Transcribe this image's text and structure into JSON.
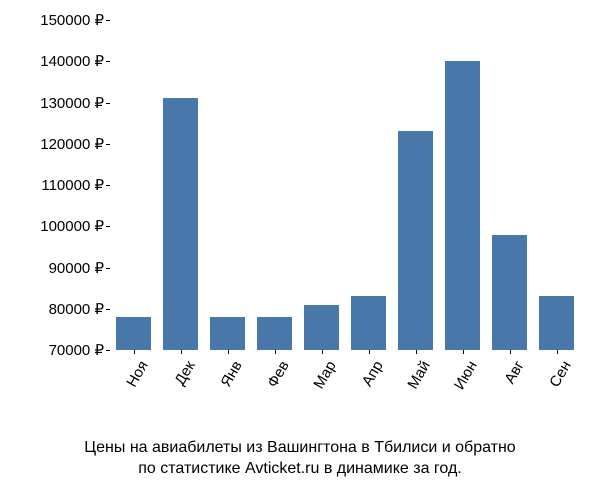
{
  "chart": {
    "type": "bar",
    "categories": [
      "Ноя",
      "Дек",
      "Янв",
      "Фев",
      "Мар",
      "Апр",
      "Май",
      "Июн",
      "Авг",
      "Сен"
    ],
    "values": [
      78000,
      131000,
      78000,
      78000,
      81000,
      83000,
      123000,
      140000,
      98000,
      83000
    ],
    "bar_color": "#4878a9",
    "background_color": "#ffffff",
    "ylim_min": 70000,
    "ylim_max": 150000,
    "ytick_step": 10000,
    "ytick_labels": [
      "70000 ₽",
      "80000 ₽",
      "90000 ₽",
      "100000 ₽",
      "110000 ₽",
      "120000 ₽",
      "130000 ₽",
      "140000 ₽",
      "150000 ₽"
    ],
    "ytick_values": [
      70000,
      80000,
      90000,
      100000,
      110000,
      120000,
      130000,
      140000,
      150000
    ],
    "bar_width_ratio": 0.75,
    "tick_fontsize": 15,
    "tick_color": "#000000",
    "x_label_rotation": -60
  },
  "caption": {
    "line1": "Цены на авиабилеты из Вашингтона в Тбилиси и обратно",
    "line2": "по статистике Avticket.ru в динамике за год.",
    "fontsize": 16,
    "color": "#000000"
  }
}
